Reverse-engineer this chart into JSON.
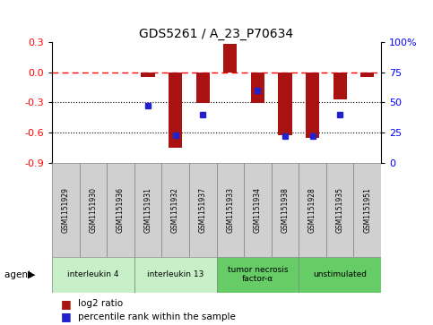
{
  "title": "GDS5261 / A_23_P70634",
  "samples": [
    "GSM1151929",
    "GSM1151930",
    "GSM1151936",
    "GSM1151931",
    "GSM1151932",
    "GSM1151937",
    "GSM1151933",
    "GSM1151934",
    "GSM1151938",
    "GSM1151928",
    "GSM1151935",
    "GSM1151951"
  ],
  "log2_ratio": [
    0,
    0,
    0,
    -0.05,
    -0.75,
    -0.31,
    0.28,
    -0.31,
    -0.63,
    -0.65,
    -0.27,
    -0.05
  ],
  "percentile": [
    null,
    null,
    null,
    47,
    23,
    40,
    null,
    60,
    22,
    22,
    40,
    null
  ],
  "groups": [
    {
      "label": "interleukin 4",
      "start": 0,
      "end": 3,
      "color": "#c8f0c8"
    },
    {
      "label": "interleukin 13",
      "start": 3,
      "end": 6,
      "color": "#c8f0c8"
    },
    {
      "label": "tumor necrosis\nfactor-α",
      "start": 6,
      "end": 9,
      "color": "#66cc66"
    },
    {
      "label": "unstimulated",
      "start": 9,
      "end": 12,
      "color": "#66cc66"
    }
  ],
  "ylim_left": [
    -0.9,
    0.3
  ],
  "yticks_left": [
    -0.9,
    -0.6,
    -0.3,
    0.0,
    0.3
  ],
  "ylim_right": [
    0,
    100
  ],
  "yticks_right": [
    0,
    25,
    50,
    75,
    100
  ],
  "bar_color": "#aa1111",
  "dot_color": "#2222cc",
  "hline_y": 0,
  "dotted_lines": [
    -0.3,
    -0.6
  ],
  "bar_width": 0.5,
  "bg_color": "#ffffff"
}
